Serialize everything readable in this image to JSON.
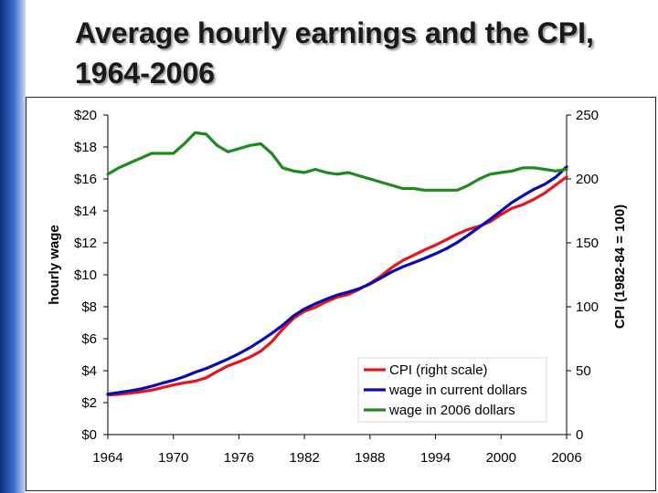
{
  "title": {
    "line1": "Average hourly earnings and the CPI,",
    "line2": "1964-2006"
  },
  "chart_data": {
    "type": "line",
    "title": "Average hourly earnings and the CPI, 1964-2006",
    "ylabel": "hourly wage",
    "y2label": "CPI  (1982-84 = 100)",
    "xlabel": "",
    "xlim": [
      1964,
      2006
    ],
    "ylim": [
      0,
      20
    ],
    "y2lim": [
      0,
      250
    ],
    "x_ticks": [
      "1964",
      "1970",
      "1976",
      "1982",
      "1988",
      "1994",
      "2000",
      "2006"
    ],
    "y_ticks": [
      "$0",
      "$2",
      "$4",
      "$6",
      "$8",
      "$10",
      "$12",
      "$14",
      "$16",
      "$18",
      "$20"
    ],
    "y2_ticks": [
      "0",
      "50",
      "100",
      "150",
      "200",
      "250"
    ],
    "legend_position": "bottom-right",
    "series": [
      {
        "name": "CPI  (right scale)",
        "axis": "right",
        "color": "#e8141c",
        "x": [
          1964,
          1965,
          1966,
          1967,
          1968,
          1969,
          1970,
          1971,
          1972,
          1973,
          1974,
          1975,
          1976,
          1977,
          1978,
          1979,
          1980,
          1981,
          1982,
          1983,
          1984,
          1985,
          1986,
          1987,
          1988,
          1989,
          1990,
          1991,
          1992,
          1993,
          1994,
          1995,
          1996,
          1997,
          1998,
          1999,
          2000,
          2001,
          2002,
          2003,
          2004,
          2005,
          2006
        ],
        "y": [
          31.0,
          31.5,
          32.4,
          33.4,
          34.8,
          36.7,
          38.8,
          40.5,
          41.8,
          44.4,
          49.3,
          53.8,
          56.9,
          60.6,
          65.2,
          72.6,
          82.4,
          90.9,
          96.5,
          99.6,
          103.9,
          107.6,
          109.6,
          113.6,
          118.3,
          124.0,
          130.7,
          136.2,
          140.3,
          144.5,
          148.2,
          152.4,
          156.9,
          160.5,
          163.0,
          166.6,
          172.2,
          177.1,
          179.9,
          184.0,
          188.9,
          195.3,
          201.6
        ]
      },
      {
        "name": "wage in current dollars",
        "axis": "left",
        "color": "#0a0ab4",
        "x": [
          1964,
          1965,
          1966,
          1967,
          1968,
          1969,
          1970,
          1971,
          1972,
          1973,
          1974,
          1975,
          1976,
          1977,
          1978,
          1979,
          1980,
          1981,
          1982,
          1983,
          1984,
          1985,
          1986,
          1987,
          1988,
          1989,
          1990,
          1991,
          1992,
          1993,
          1994,
          1995,
          1996,
          1997,
          1998,
          1999,
          2000,
          2001,
          2002,
          2003,
          2004,
          2005,
          2006
        ],
        "y": [
          2.53,
          2.63,
          2.73,
          2.85,
          3.02,
          3.22,
          3.4,
          3.63,
          3.9,
          4.14,
          4.43,
          4.73,
          5.06,
          5.44,
          5.87,
          6.33,
          6.84,
          7.43,
          7.86,
          8.19,
          8.48,
          8.73,
          8.92,
          9.13,
          9.43,
          9.8,
          10.19,
          10.5,
          10.76,
          11.03,
          11.32,
          11.64,
          12.03,
          12.49,
          12.98,
          13.47,
          14.0,
          14.53,
          14.95,
          15.35,
          15.67,
          16.11,
          16.76
        ]
      },
      {
        "name": "wage in 2006 dollars",
        "axis": "left",
        "color": "#1e8a1e",
        "x": [
          1964,
          1965,
          1966,
          1967,
          1968,
          1969,
          1970,
          1971,
          1972,
          1973,
          1974,
          1975,
          1976,
          1977,
          1978,
          1979,
          1980,
          1981,
          1982,
          1983,
          1984,
          1985,
          1986,
          1987,
          1988,
          1989,
          1990,
          1991,
          1992,
          1993,
          1994,
          1995,
          1996,
          1997,
          1998,
          1999,
          2000,
          2001,
          2002,
          2003,
          2004,
          2005,
          2006
        ],
        "y": [
          16.3,
          16.7,
          17.0,
          17.3,
          17.6,
          17.6,
          17.6,
          18.2,
          18.9,
          18.8,
          18.1,
          17.7,
          17.9,
          18.1,
          18.2,
          17.6,
          16.7,
          16.5,
          16.4,
          16.6,
          16.4,
          16.3,
          16.4,
          16.2,
          16.0,
          15.8,
          15.6,
          15.4,
          15.4,
          15.3,
          15.3,
          15.3,
          15.3,
          15.6,
          16.0,
          16.3,
          16.4,
          16.5,
          16.7,
          16.7,
          16.6,
          16.5,
          16.6
        ]
      }
    ]
  }
}
